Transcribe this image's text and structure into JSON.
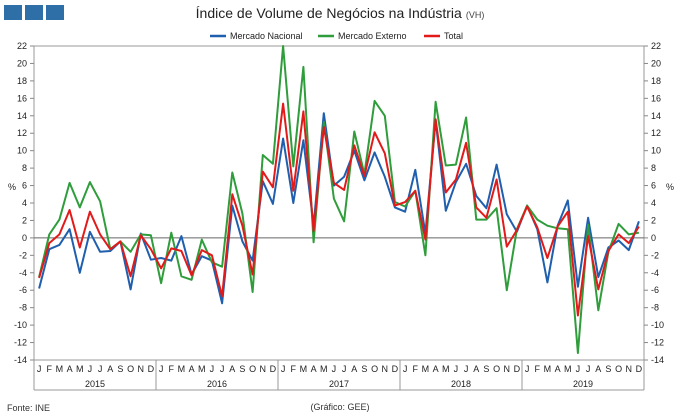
{
  "title": "Índice de Volume de Negócios na Indústria",
  "title_note": "(VH)",
  "source": "Fonte: INE",
  "footnote": "(Gráfico: GEE)",
  "chart_data": {
    "type": "line",
    "ylabel": "%",
    "ylabel_right": "%",
    "ylim": [
      -14,
      22
    ],
    "yticks": [
      -14,
      -12,
      -10,
      -8,
      -6,
      -4,
      -2,
      0,
      2,
      4,
      6,
      8,
      10,
      12,
      14,
      16,
      18,
      20,
      22
    ],
    "month_labels": [
      "J",
      "F",
      "M",
      "A",
      "M",
      "J",
      "J",
      "A",
      "S",
      "O",
      "N",
      "D"
    ],
    "years": [
      "2015",
      "2016",
      "2017",
      "2018",
      "2019"
    ],
    "legend_position": "top",
    "series": [
      {
        "name": "Mercado Nacional",
        "color": "#1f5fae",
        "values": [
          -5.8,
          -1.3,
          -0.8,
          1.0,
          -4.0,
          0.7,
          -1.6,
          -1.5,
          -0.4,
          -5.9,
          0.5,
          -2.5,
          -2.3,
          -2.6,
          0.2,
          -4.2,
          -2.1,
          -2.6,
          -7.5,
          3.7,
          -0.4,
          -2.6,
          6.5,
          3.9,
          11.4,
          4.0,
          11.2,
          1.4,
          14.3,
          6.0,
          7.0,
          10.0,
          6.6,
          9.8,
          7.0,
          3.5,
          3.0,
          7.8,
          0.5,
          13.5,
          3.1,
          6.4,
          8.5,
          4.8,
          3.4,
          8.4,
          2.7,
          0.7,
          3.7,
          1.0,
          -5.1,
          1.4,
          4.3,
          -5.6,
          2.3,
          -4.5,
          -1.1,
          -0.3,
          -1.4,
          1.9
        ]
      },
      {
        "name": "Mercado Externo",
        "color": "#2f9d3b",
        "values": [
          -4.5,
          0.4,
          2.1,
          6.3,
          3.5,
          6.4,
          4.2,
          -1.3,
          -0.4,
          -1.6,
          0.4,
          0.3,
          -5.2,
          0.6,
          -4.4,
          -4.8,
          -0.2,
          -2.8,
          -3.3,
          7.5,
          2.8,
          -6.2,
          9.5,
          8.5,
          22.0,
          8.2,
          19.6,
          -0.5,
          13.3,
          4.5,
          1.9,
          12.2,
          7.3,
          15.7,
          14.0,
          4.1,
          3.6,
          5.4,
          -2.0,
          15.6,
          8.3,
          8.4,
          13.8,
          2.1,
          2.1,
          3.4,
          -6.0,
          1.0,
          3.7,
          2.1,
          1.4,
          1.1,
          1.0,
          -13.2,
          1.5,
          -8.3,
          -1.6,
          1.6,
          0.4,
          0.6
        ]
      },
      {
        "name": "Total",
        "color": "#e21a1a",
        "values": [
          -4.6,
          -0.6,
          0.4,
          3.2,
          -1.1,
          3.0,
          0.4,
          -1.3,
          -0.4,
          -4.4,
          0.3,
          -1.3,
          -3.5,
          -1.2,
          -1.5,
          -4.3,
          -1.4,
          -2.0,
          -6.7,
          5.0,
          1.4,
          -4.2,
          7.6,
          5.8,
          15.4,
          5.4,
          14.5,
          0.8,
          12.7,
          6.3,
          5.5,
          10.6,
          7.1,
          12.1,
          9.7,
          3.7,
          4.1,
          5.4,
          -0.2,
          13.6,
          5.2,
          6.7,
          10.9,
          3.5,
          2.3,
          6.7,
          -1.0,
          0.9,
          3.6,
          1.2,
          -2.3,
          1.3,
          3.0,
          -8.9,
          0.2,
          -5.9,
          -1.5,
          0.4,
          -0.6,
          1.3
        ]
      }
    ]
  }
}
